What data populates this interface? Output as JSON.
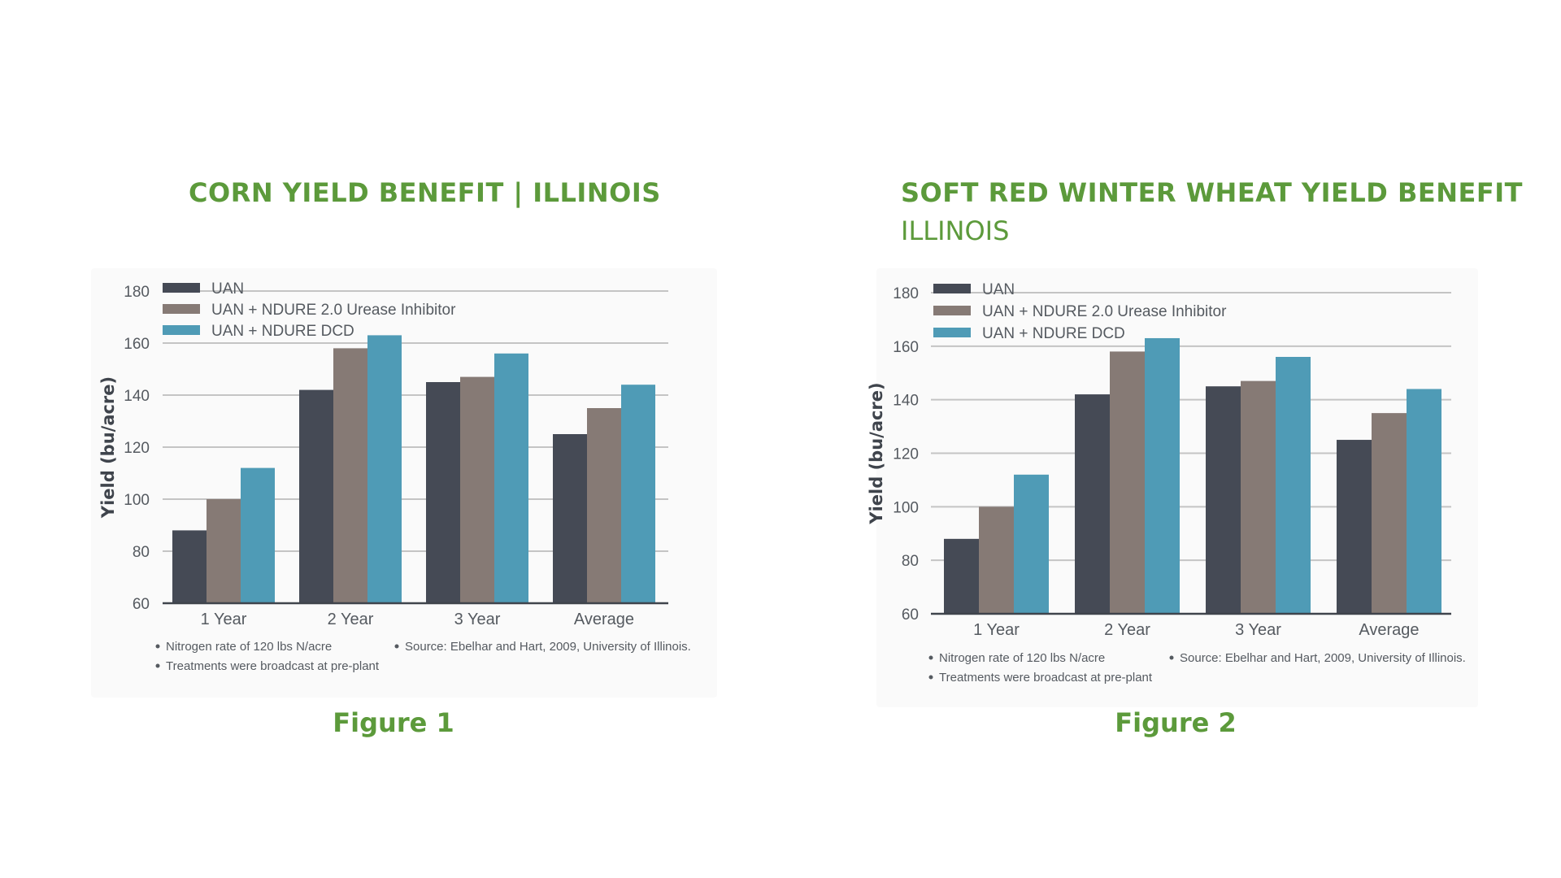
{
  "colors": {
    "accent_green": "#5c9a3b",
    "series": [
      "#454a55",
      "#867a75",
      "#4f9bb6"
    ],
    "grid": "#c4c4c4",
    "axis": "#3f444c"
  },
  "figures": [
    {
      "title": "CORN YIELD BENEFIT | ILLINOIS",
      "subtitle": "",
      "caption": "Figure 1",
      "notes": {
        "left": [
          "Nitrogen rate of 120 lbs N/acre",
          "Treatments were broadcast at pre-plant"
        ],
        "right": [
          "Source: Ebelhar and Hart, 2009, University of Illinois."
        ]
      }
    },
    {
      "title": "SOFT RED WINTER WHEAT YIELD BENEFIT",
      "subtitle": "ILLINOIS",
      "caption": "Figure 2",
      "notes": {
        "left": [
          "Nitrogen rate of 120 lbs N/acre",
          "Treatments were broadcast at pre-plant"
        ],
        "right": [
          "Source: Ebelhar and Hart, 2009, University of Illinois."
        ]
      }
    }
  ],
  "chart_data": [
    {
      "type": "bar",
      "title": "CORN YIELD BENEFIT | ILLINOIS",
      "xlabel": "",
      "ylabel": "Yield (bu/acre)",
      "ylim": [
        60,
        180
      ],
      "yticks": [
        60,
        80,
        100,
        120,
        140,
        160,
        180
      ],
      "grid": true,
      "legend_position": "top-left",
      "categories": [
        "1 Year",
        "2 Year",
        "3 Year",
        "Average"
      ],
      "series": [
        {
          "name": "UAN",
          "values": [
            88,
            142,
            145,
            125
          ]
        },
        {
          "name": "UAN + NDURE 2.0 Urease Inhibitor",
          "values": [
            100,
            158,
            147,
            135
          ]
        },
        {
          "name": "UAN + NDURE DCD",
          "values": [
            112,
            163,
            156,
            144
          ]
        }
      ]
    },
    {
      "type": "bar",
      "title": "SOFT RED WINTER WHEAT YIELD BENEFIT ILLINOIS",
      "xlabel": "",
      "ylabel": "Yield (bu/acre)",
      "ylim": [
        60,
        180
      ],
      "yticks": [
        60,
        80,
        100,
        120,
        140,
        160,
        180
      ],
      "grid": true,
      "legend_position": "top-left",
      "categories": [
        "1 Year",
        "2 Year",
        "3 Year",
        "Average"
      ],
      "series": [
        {
          "name": "UAN",
          "values": [
            88,
            142,
            145,
            125
          ]
        },
        {
          "name": "UAN + NDURE 2.0 Urease Inhibitor",
          "values": [
            100,
            158,
            147,
            135
          ]
        },
        {
          "name": "UAN + NDURE DCD",
          "values": [
            112,
            163,
            156,
            144
          ]
        }
      ]
    }
  ]
}
